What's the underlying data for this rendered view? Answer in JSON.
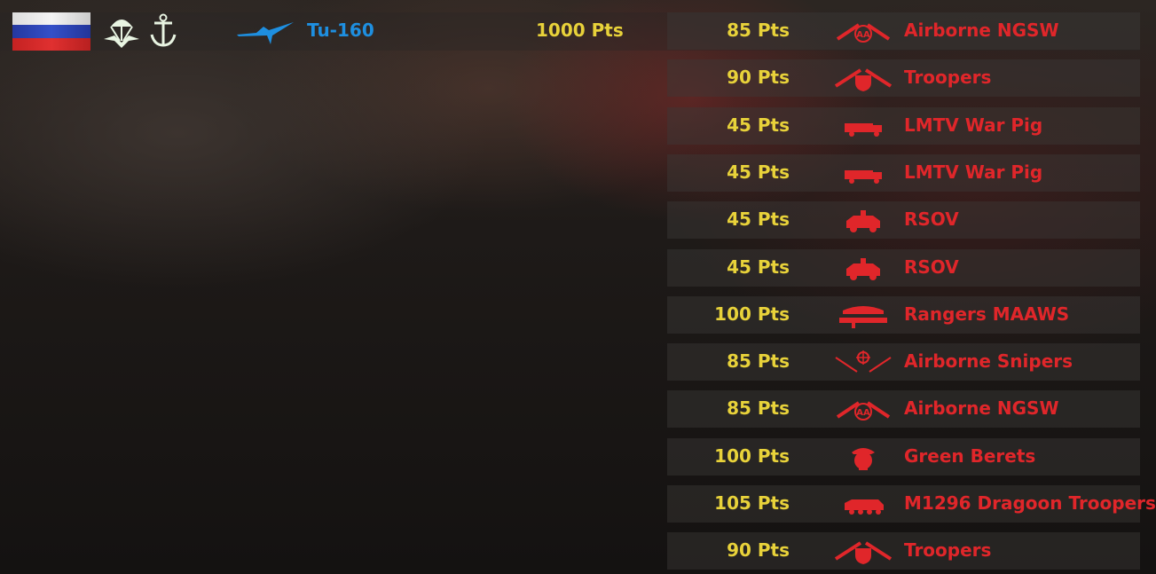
{
  "header": {
    "faction_flag": "russia-flag",
    "badges": [
      "paratrooper-icon",
      "anchor-icon"
    ],
    "aircraft": {
      "icon": "bomber-plane-icon",
      "name": "Tu-160",
      "cost": "1000 Pts"
    }
  },
  "colors": {
    "points": "#e8d23a",
    "unit_name": "#e0262a",
    "aircraft": "#1e8fe0"
  },
  "units": [
    {
      "pts": "85 Pts",
      "name": "Airborne NGSW",
      "icon": "airborne-rifles-icon"
    },
    {
      "pts": "90 Pts",
      "name": "Troopers",
      "icon": "cavalry-rifles-icon"
    },
    {
      "pts": "45 Pts",
      "name": "LMTV War Pig",
      "icon": "truck-icon"
    },
    {
      "pts": "45 Pts",
      "name": "LMTV War Pig",
      "icon": "truck-icon"
    },
    {
      "pts": "45 Pts",
      "name": "RSOV",
      "icon": "jeep-icon"
    },
    {
      "pts": "45 Pts",
      "name": "RSOV",
      "icon": "jeep-icon"
    },
    {
      "pts": "100 Pts",
      "name": "Rangers MAAWS",
      "icon": "rangers-icon"
    },
    {
      "pts": "85 Pts",
      "name": "Airborne Snipers",
      "icon": "sniper-icon"
    },
    {
      "pts": "85 Pts",
      "name": "Airborne NGSW",
      "icon": "airborne-rifles-icon"
    },
    {
      "pts": "100 Pts",
      "name": "Green Berets",
      "icon": "skull-beret-icon"
    },
    {
      "pts": "105 Pts",
      "name": "M1296 Dragoon Troopers",
      "icon": "apc-icon"
    },
    {
      "pts": "90 Pts",
      "name": "Troopers",
      "icon": "cavalry-rifles-icon"
    }
  ]
}
